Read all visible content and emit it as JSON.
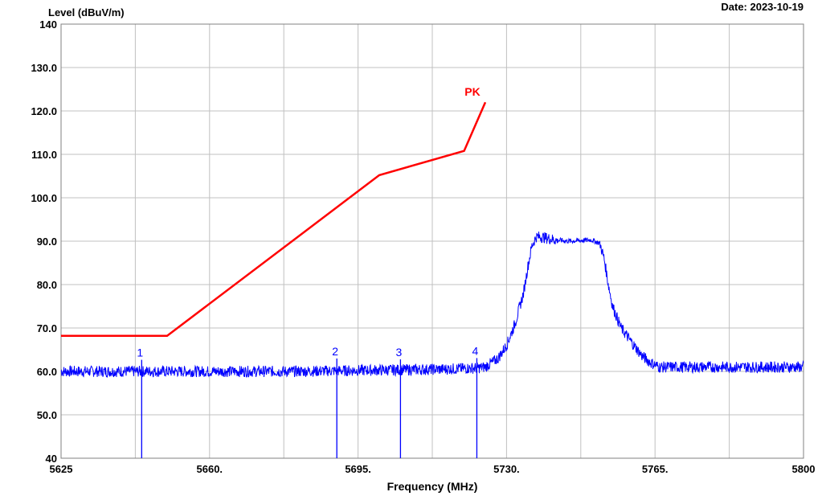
{
  "chart_data": {
    "type": "line",
    "ylabel": "Level (dBuV/m)",
    "xlabel": "Frequency (MHz)",
    "date": "Date: 2023-10-19",
    "xlim": [
      5625,
      5800
    ],
    "ylim": [
      40,
      140
    ],
    "x_ticks": [
      {
        "value": 5625,
        "label": "5625"
      },
      {
        "value": 5660,
        "label": "5660."
      },
      {
        "value": 5695,
        "label": "5695."
      },
      {
        "value": 5730,
        "label": "5730."
      },
      {
        "value": 5765,
        "label": "5765."
      },
      {
        "value": 5800,
        "label": "5800"
      }
    ],
    "y_ticks": [
      {
        "value": 40,
        "label": "40"
      },
      {
        "value": 50,
        "label": "50.0"
      },
      {
        "value": 60,
        "label": "60.0"
      },
      {
        "value": 70,
        "label": "70.0"
      },
      {
        "value": 80,
        "label": "80.0"
      },
      {
        "value": 90,
        "label": "90.0"
      },
      {
        "value": 100,
        "label": "100.0"
      },
      {
        "value": 110,
        "label": "110.0"
      },
      {
        "value": 120,
        "label": "120.0"
      },
      {
        "value": 130,
        "label": "130.0"
      },
      {
        "value": 140,
        "label": "140"
      }
    ],
    "grid": true,
    "series": [
      {
        "name": "PK",
        "color": "#ff0000",
        "x": [
          5625,
          5650,
          5700,
          5720,
          5725
        ],
        "y": [
          68.2,
          68.2,
          105.2,
          110.8,
          122
        ]
      },
      {
        "color": "#0000ff",
        "x": [
          5625,
          5640,
          5660,
          5680,
          5700,
          5715,
          5723,
          5725,
          5728,
          5730,
          5732,
          5734,
          5735,
          5736,
          5737,
          5738,
          5742,
          5745,
          5750,
          5752,
          5753,
          5754,
          5755,
          5757,
          5760,
          5762,
          5764,
          5766,
          5770,
          5780,
          5790,
          5800
        ],
        "y": [
          60,
          60,
          60,
          60,
          60.3,
          60.5,
          60.8,
          61,
          63,
          66,
          71,
          78,
          84,
          89,
          91,
          91,
          90.2,
          90,
          90.3,
          89.5,
          86,
          80,
          75,
          70,
          66,
          63.5,
          62,
          61,
          61,
          61,
          61,
          61
        ]
      }
    ],
    "markers": [
      {
        "label": "1",
        "x": 5644,
        "y": 62.3
      },
      {
        "label": "2",
        "x": 5690,
        "y": 62.6
      },
      {
        "label": "3",
        "x": 5705,
        "y": 62.4
      },
      {
        "label": "4",
        "x": 5723,
        "y": 62.7
      }
    ]
  }
}
